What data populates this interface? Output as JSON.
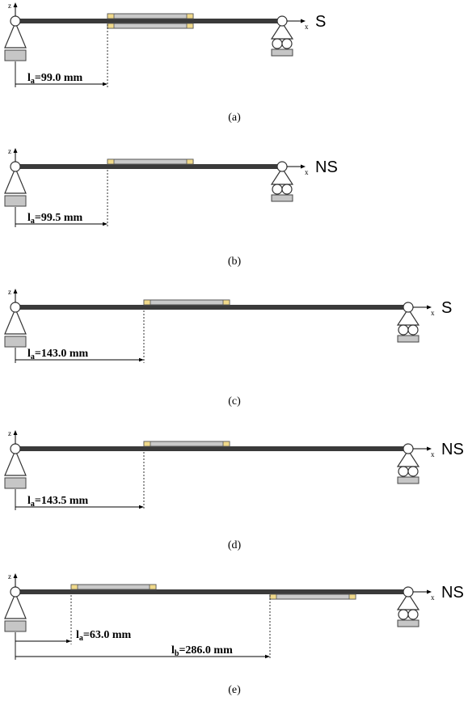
{
  "axes": {
    "z_label": "z",
    "x_label": "x"
  },
  "panels": [
    {
      "caption": "(a)",
      "condition": "S",
      "patches": [
        "top",
        "bottom"
      ],
      "dimensions": [
        {
          "sym": "l",
          "sub": "a",
          "val": "=99.0 mm"
        }
      ]
    },
    {
      "caption": "(b)",
      "condition": "NS",
      "patches": [
        "top"
      ],
      "dimensions": [
        {
          "sym": "l",
          "sub": "a",
          "val": "=99.5 mm"
        }
      ]
    },
    {
      "caption": "(c)",
      "condition": "S",
      "patches": [
        "top"
      ],
      "dimensions": [
        {
          "sym": "l",
          "sub": "a",
          "val": "=143.0 mm"
        }
      ]
    },
    {
      "caption": "(d)",
      "condition": "NS",
      "patches": [
        "top"
      ],
      "dimensions": [
        {
          "sym": "l",
          "sub": "a",
          "val": "=143.5 mm"
        }
      ]
    },
    {
      "caption": "(e)",
      "condition": "NS",
      "patches": [
        "top",
        "bottom"
      ],
      "dimensions": [
        {
          "sym": "l",
          "sub": "a",
          "val": "=63.0 mm"
        },
        {
          "sym": "l",
          "sub": "b",
          "val": "=286.0 mm"
        }
      ]
    }
  ]
}
